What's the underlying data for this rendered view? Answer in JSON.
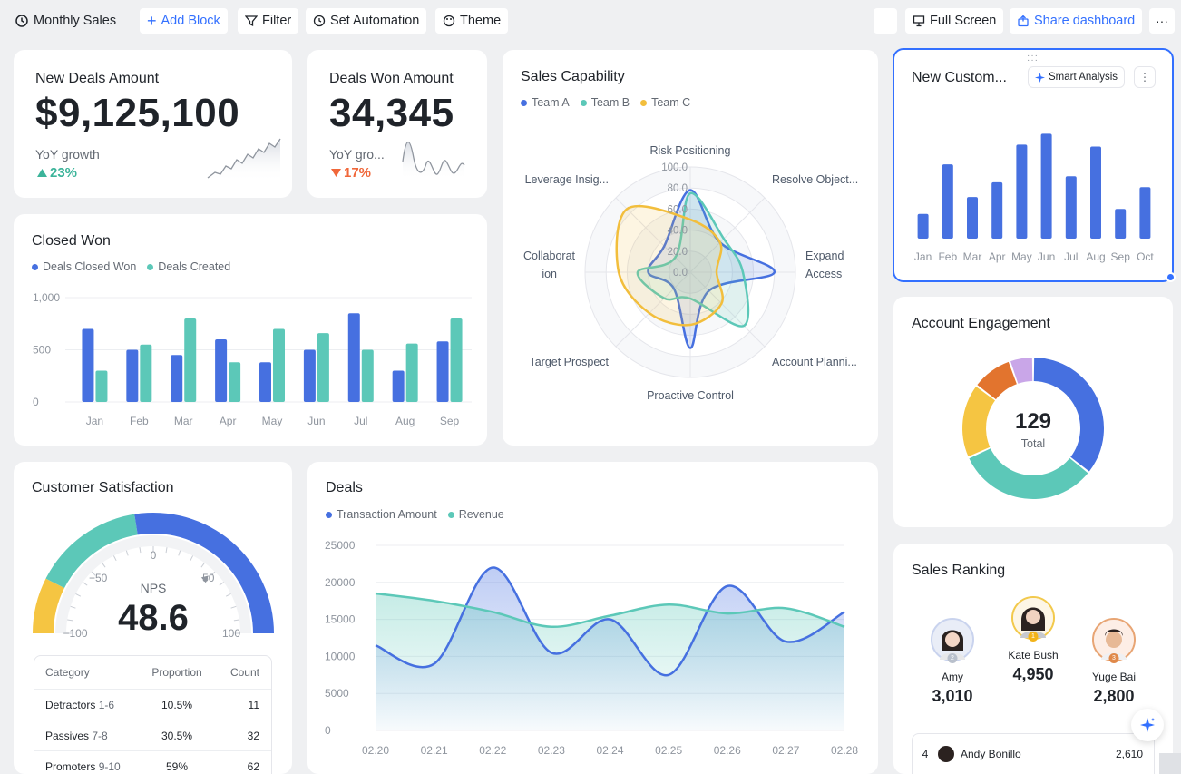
{
  "toolbar": {
    "title": "Monthly Sales",
    "add_block": "Add Block",
    "filter": "Filter",
    "set_automation": "Set Automation",
    "theme": "Theme",
    "full_screen": "Full Screen",
    "share": "Share dashboard",
    "more": "···"
  },
  "kpi_deals": {
    "label": "New Deals Amount",
    "value": "$9,125,100",
    "yoy_label": "YoY growth",
    "yoy_value": "23%",
    "direction": "up"
  },
  "kpi_won": {
    "label": "Deals Won Amount",
    "value": "34,345",
    "yoy_label": "YoY gro...",
    "yoy_value": "17%",
    "direction": "down"
  },
  "closed_won": {
    "title": "Closed Won",
    "legend": [
      "Deals Closed Won",
      "Deals Created"
    ],
    "chart_data": {
      "type": "bar",
      "categories": [
        "Jan",
        "Feb",
        "Mar",
        "Apr",
        "May",
        "Jun",
        "Jul",
        "Aug",
        "Sep"
      ],
      "series": [
        {
          "name": "Deals Closed Won",
          "values": [
            700,
            500,
            450,
            600,
            380,
            500,
            850,
            300,
            580
          ],
          "color": "#4670e0"
        },
        {
          "name": "Deals Created",
          "values": [
            300,
            550,
            800,
            380,
            700,
            660,
            500,
            560,
            800
          ],
          "color": "#5cc8b8"
        }
      ],
      "ylim": [
        0,
        1000
      ],
      "yticks": [
        "1,000",
        "500",
        "0"
      ]
    }
  },
  "radar": {
    "title": "Sales Capability",
    "legend": [
      "Team A",
      "Team B",
      "Team C"
    ],
    "chart_data": {
      "type": "radar",
      "axes": [
        "Risk Positioning",
        "Resolve Object...",
        "Expand Access",
        "Account Planni...",
        "Proactive Control",
        "Target Prospect",
        "Collaboration",
        "Leverage Insig..."
      ],
      "axis_labels_display": [
        "Risk Positioning",
        "Resolve Object...",
        "Expand\nAccess",
        "Account Planni...",
        "Proactive Control",
        "Target Prospect",
        "Collaborat\nion",
        "Leverage Insig..."
      ],
      "rings": [
        "100.0",
        "80.0",
        "60.0",
        "40.0",
        "20.0",
        "0.0"
      ],
      "series": [
        {
          "name": "Team A",
          "values": [
            78,
            40,
            80,
            25,
            72,
            22,
            40,
            35
          ],
          "color": "#4670e0"
        },
        {
          "name": "Team B",
          "values": [
            75,
            45,
            50,
            72,
            25,
            35,
            50,
            20
          ],
          "color": "#5cc8b8"
        },
        {
          "name": "Team C",
          "values": [
            50,
            40,
            25,
            42,
            50,
            55,
            68,
            85
          ],
          "color": "#f2be3c"
        }
      ]
    }
  },
  "new_customers": {
    "title": "New Custom...",
    "smart_analysis": "Smart Analysis",
    "chart_data": {
      "type": "bar",
      "categories": [
        "Jan",
        "Feb",
        "Mar",
        "Apr",
        "May",
        "Jun",
        "Jul",
        "Aug",
        "Sep",
        "Oct"
      ],
      "values": [
        25,
        75,
        42,
        57,
        95,
        106,
        63,
        93,
        30,
        52
      ],
      "ylim": [
        0,
        110
      ],
      "color": "#4670e0"
    }
  },
  "engagement": {
    "title": "Account Engagement",
    "total_value": "129",
    "total_label": "Total",
    "chart_data": {
      "type": "pie",
      "values": [
        46,
        42,
        22,
        12,
        7
      ],
      "colors": [
        "#4670e0",
        "#5cc8b8",
        "#f5c542",
        "#e2742e",
        "#c9a6e8"
      ]
    }
  },
  "satisfaction": {
    "title": "Customer Satisfaction",
    "nps_label": "NPS",
    "nps_value": "48.6",
    "gauge_ticks": [
      "−100",
      "−50",
      "0",
      "50",
      "100"
    ],
    "table": {
      "headers": [
        "Category",
        "Proportion",
        "Count"
      ],
      "rows": [
        {
          "category": "Detractors",
          "range": "1-6",
          "proportion": "10.5%",
          "count": "11"
        },
        {
          "category": "Passives",
          "range": "7-8",
          "proportion": "30.5%",
          "count": "32"
        },
        {
          "category": "Promoters",
          "range": "9-10",
          "proportion": "59%",
          "count": "62"
        }
      ]
    }
  },
  "deals": {
    "title": "Deals",
    "legend": [
      "Transaction Amount",
      "Revenue"
    ],
    "chart_data": {
      "type": "area",
      "x": [
        "02.20",
        "02.21",
        "02.22",
        "02.23",
        "02.24",
        "02.25",
        "02.26",
        "02.27",
        "02.28"
      ],
      "series": [
        {
          "name": "Transaction Amount",
          "values": [
            11500,
            9000,
            22000,
            10500,
            15000,
            7500,
            19500,
            12000,
            16000
          ],
          "color": "#4670e0"
        },
        {
          "name": "Revenue",
          "values": [
            18500,
            17500,
            16000,
            14000,
            15500,
            17000,
            15800,
            16500,
            14000
          ],
          "color": "#5cc8b8"
        }
      ],
      "ylim": [
        0,
        25000
      ],
      "yticks": [
        "25000",
        "20000",
        "15000",
        "10000",
        "5000",
        "0"
      ]
    }
  },
  "ranking": {
    "title": "Sales Ranking",
    "top": [
      {
        "rank": "2",
        "name": "Amy",
        "value": "3,010"
      },
      {
        "rank": "1",
        "name": "Kate Bush",
        "value": "4,950"
      },
      {
        "rank": "3",
        "name": "Yuge Bai",
        "value": "2,800"
      }
    ],
    "list": [
      {
        "rank": "4",
        "name": "Andy Bonillo",
        "value": "2,610"
      }
    ]
  }
}
